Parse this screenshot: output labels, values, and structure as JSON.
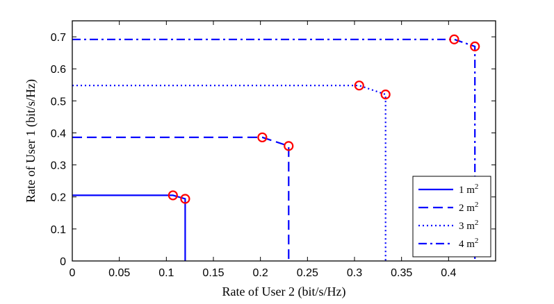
{
  "chart_data": {
    "type": "line",
    "xlabel": "Rate of User 2 (bit/s/Hz)",
    "ylabel": "Rate of User 1 (bit/s/Hz)",
    "xlim": [
      0,
      0.45
    ],
    "ylim": [
      0,
      0.75
    ],
    "xticks": [
      "0",
      "0.05",
      "0.1",
      "0.15",
      "0.2",
      "0.25",
      "0.3",
      "0.35",
      "0.4"
    ],
    "yticks": [
      "0",
      "0.1",
      "0.2",
      "0.3",
      "0.4",
      "0.5",
      "0.6",
      "0.7"
    ],
    "grid": false,
    "legend_position": "bottom-right",
    "line_color": "#0000ff",
    "marker_color": "#ff0000",
    "series": [
      {
        "name": "1 m",
        "superscript": "2",
        "dash": "solid",
        "x": [
          0,
          0.107,
          0.12,
          0.12
        ],
        "y": [
          0.205,
          0.205,
          0.194,
          0
        ],
        "markers": [
          [
            0.107,
            0.205
          ],
          [
            0.12,
            0.194
          ]
        ]
      },
      {
        "name": "2 m",
        "superscript": "2",
        "dash": "dashed",
        "x": [
          0,
          0.202,
          0.23,
          0.23
        ],
        "y": [
          0.386,
          0.386,
          0.359,
          0
        ],
        "markers": [
          [
            0.202,
            0.386
          ],
          [
            0.23,
            0.359
          ]
        ]
      },
      {
        "name": "3 m",
        "superscript": "2",
        "dash": "dotted",
        "x": [
          0,
          0.305,
          0.333,
          0.333
        ],
        "y": [
          0.548,
          0.548,
          0.52,
          0
        ],
        "markers": [
          [
            0.305,
            0.548
          ],
          [
            0.333,
            0.52
          ]
        ]
      },
      {
        "name": "4 m",
        "superscript": "2",
        "dash": "dashdot",
        "x": [
          0,
          0.406,
          0.428,
          0.428
        ],
        "y": [
          0.692,
          0.692,
          0.67,
          0
        ],
        "markers": [
          [
            0.406,
            0.692
          ],
          [
            0.428,
            0.67
          ]
        ]
      }
    ]
  }
}
